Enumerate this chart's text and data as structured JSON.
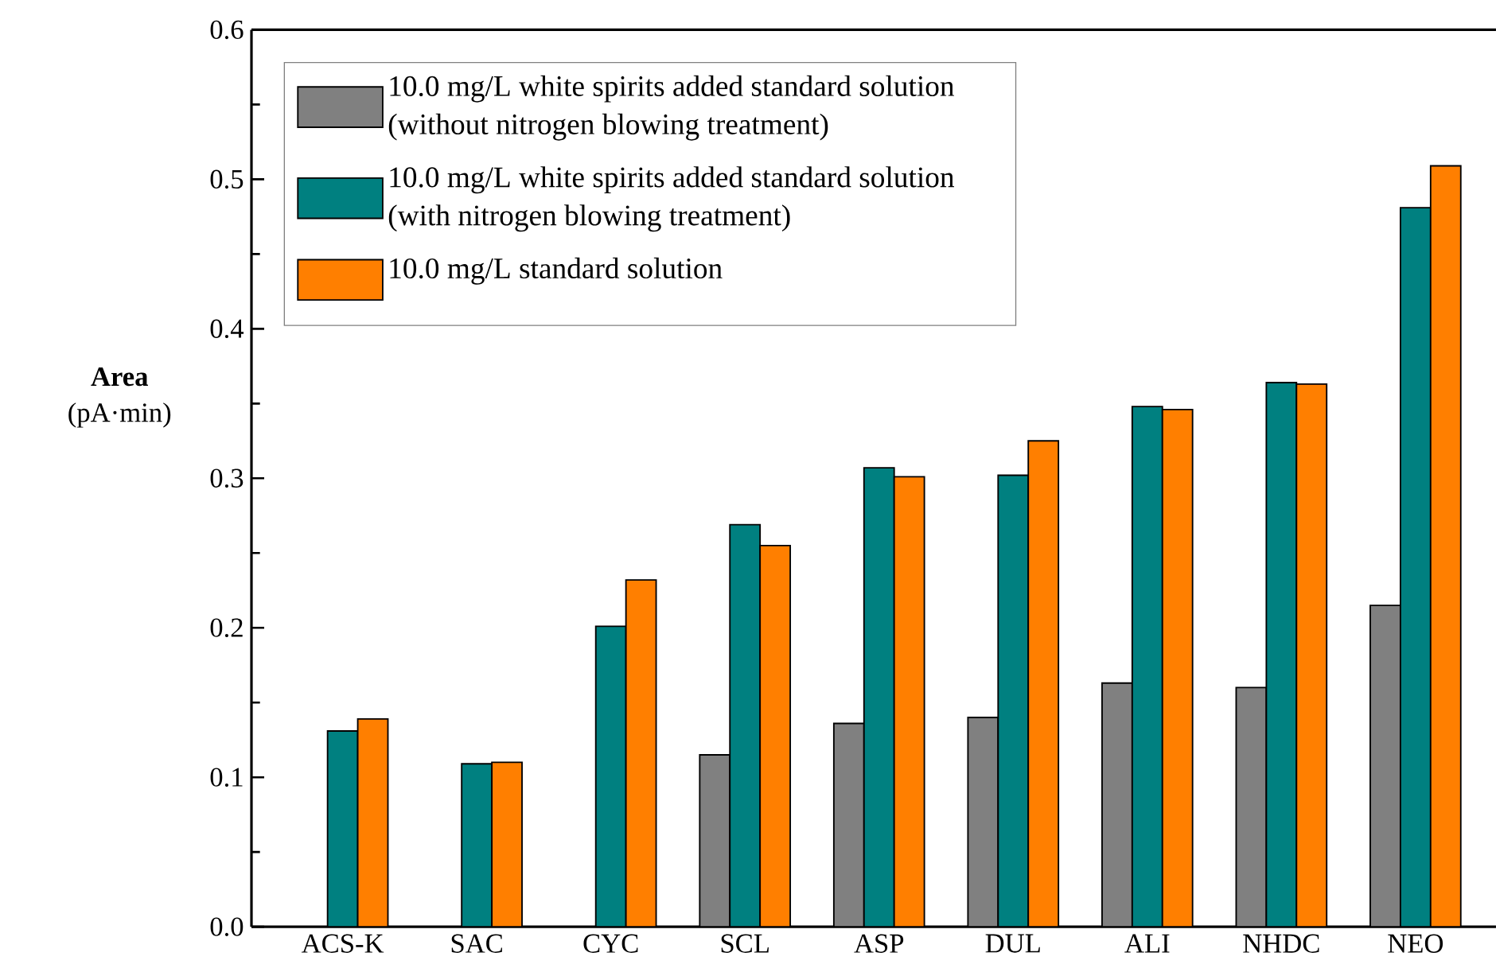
{
  "chart_data": {
    "type": "bar",
    "ylabel": "**Area** (pA·min)",
    "categories": [
      "ACS-K",
      "SAC",
      "CYC",
      "SCL",
      "ASP",
      "DUL",
      "ALI",
      "NHDC",
      "NEO"
    ],
    "series": [
      {
        "name": "10.0 mg/L white spirits added standard solution (without nitrogen blowing treatment)",
        "color": "#808080",
        "values": [
          null,
          null,
          null,
          0.115,
          0.136,
          0.14,
          0.163,
          0.16,
          0.215
        ]
      },
      {
        "name": "10.0 mg/L white spirits added standard solution (with nitrogen blowing treatment)",
        "color": "#008080",
        "values": [
          0.131,
          0.109,
          0.201,
          0.269,
          0.307,
          0.302,
          0.348,
          0.364,
          0.481
        ]
      },
      {
        "name": "10.0 mg/L standard solution",
        "color": "#ff7f00",
        "values": [
          0.139,
          0.11,
          0.232,
          0.255,
          0.301,
          0.325,
          0.346,
          0.363,
          0.509
        ]
      }
    ],
    "ylim": [
      0,
      0.6
    ],
    "yticks": [
      {
        "value": 0,
        "label": "0.0"
      },
      0.1,
      0.2,
      0.3,
      0.4,
      0.5,
      0.6
    ],
    "legend": "top left"
  }
}
